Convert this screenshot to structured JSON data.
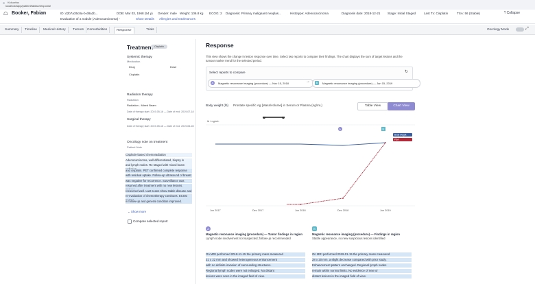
{
  "browser": {
    "tab_title": "Kidsorfas",
    "url": "localhost/app/patient/fabian/response"
  },
  "patient": {
    "name": "Booker, Fabian",
    "id": "ID: d2b7a35c8a-b-d8a2b...",
    "dob": "DOB: Mar 03, 1968 (54 y)",
    "gender": "Gender: male",
    "weight": "Weight: 106.8 kg",
    "ecog": "ECOG: 2",
    "diagnosis": "Diagnosis: Primary malignant neoplas...",
    "histotype": "Histotype: Adenocarcinoma",
    "stage_date": "Diagnosis date: 2018-12-21",
    "stage": "Stage: Initial Staged",
    "last_tx": "Last Tx: Cisplatin",
    "tsa": "TSA: 56 (Stable)",
    "sub1": "Evaluation of a nodule (Adenocarcinoma) - ",
    "sub_link1": "Show Details",
    "sub_link2": "Allergies and Intolerances",
    "collapse": "Collapse"
  },
  "tabs": [
    {
      "label": "Summary",
      "active": false
    },
    {
      "label": "Timeline",
      "active": false
    },
    {
      "label": "Medical History",
      "active": false
    },
    {
      "label": "Tumors",
      "active": false
    },
    {
      "label": "Comorbidities",
      "active": false
    },
    {
      "label": "Response",
      "active": true
    },
    {
      "label": "Trials",
      "active": false
    }
  ],
  "oncology_toggle_label": "Oncology Mode",
  "treatment": {
    "title": "Treatment",
    "badge": "Cisplatin",
    "systemic_label": "Systemic therapy",
    "systemic_sub": "Medication",
    "drug_col": "Drug",
    "dose_col": "Dose",
    "drug": "Cisplatin",
    "radiation_label": "Radiation therapy",
    "radiation_sub": "Radiation",
    "radiation_value": "Radiation - Mixed Beam",
    "radiation_dates": "Date of therapy start: 2019-05-16 — Date of end: 2019-07-18",
    "surgery_label": "Surgical therapy",
    "surgery_dates": "Date of therapy start: 2019-05-16 — Date of end: 2019-06-28",
    "oncology_label": "Oncology note on treatment",
    "oncology_sub": "Patient Note",
    "note_lines": [
      "Cisplatin-based chemoradiation",
      "Adenocarcinoma, well differentiated, biopsy in tumour",
      "and lymph nodes. Re-staged with mixed beam radiation",
      "and cisplatin. PET confirmed complete response",
      "with residual uptake. Follow-up ultrasound of breast",
      "was negative for recurrence. Surveillance was",
      "resumed after treatment with no new lesions. Patient",
      "recovered well. Last scans show stable disease and",
      "re-evaluation of chemotherapy continues. ECOG scores",
      "in follow-up and general condition improved."
    ],
    "show_more": "Show more",
    "checkbox_label": "Compare selected report"
  },
  "response": {
    "title": "Response",
    "description": "This view shows the change in lesion response over time. Select two reports to compare their findings. The chart displays the sum of target lesions and the tumour marker trend for the selected period.",
    "compare_title": "Select reports to compare",
    "report_a": "Magnetic resonance imaging (procedure) — Nov 15, 2018",
    "report_b": "Magnetic resonance imaging (procedure) — Jan 15, 2019",
    "measure_label": "Body weight (lb)",
    "measure_desc": "Prostate specific Ag [Mass/volume] in Serum or Plasma (ng/mL)",
    "btn_table": "Table View",
    "btn_chart": "Chart View",
    "legend_a": "Body weight",
    "legend_b": "PSA",
    "y_label": "lb / ng/mL"
  },
  "colors": {
    "series_a": "#3b5f9e",
    "series_b": "#b02a3a",
    "accent": "#8e8bd3",
    "accent_b": "#5fb9c9"
  },
  "chart_data": {
    "type": "line",
    "x": [
      "Jun 2017",
      "Dec 2017",
      "Jun 2018",
      "Dec 2018",
      "Jun 2019"
    ],
    "series": [
      {
        "name": "Body weight",
        "values": [
          108,
          108,
          108,
          107.5,
          108.5
        ]
      },
      {
        "name": "PSA",
        "values": [
          0,
          0,
          0,
          3,
          30
        ]
      }
    ]
  },
  "cards": [
    {
      "marker": "A",
      "title": "Magnetic resonance imaging (procedure) — Tumor findings in region",
      "subtitle": "Lymph node involvement not suspected; follow-up recommended",
      "lines": [
        "On MRI performed 2018-11-15 the primary mass measured",
        "31 x 22 mm and showed heterogeneous enhancement",
        "with no definite invasion of surrounding structures.",
        "Regional lymph nodes were not enlarged. No distant",
        "lesions were seen in the imaged field of view."
      ]
    },
    {
      "marker": "B",
      "title": "Magnetic resonance imaging (procedure) — Findings in region",
      "subtitle": "Stable appearance, no new suspicious lesions identified",
      "lines": [
        "On MRI performed 2019-01-15 the primary mass measured",
        "28 x 20 mm, a slight decrease compared with prior study.",
        "Enhancement pattern unchanged. Regional lymph nodes",
        "remain within normal limits. No evidence of new or",
        "distant lesions in the imaged field of view."
      ]
    }
  ]
}
